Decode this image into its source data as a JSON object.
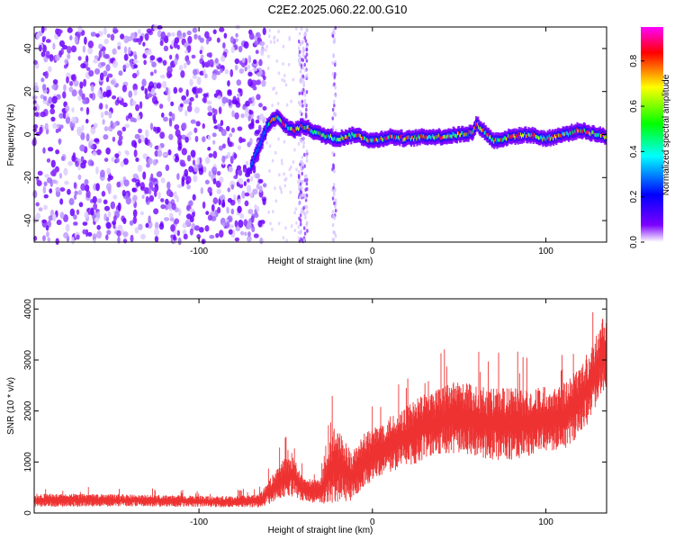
{
  "title": "C2E2.2025.060.22.00.G10",
  "chart_data": [
    {
      "type": "heatmap",
      "xlabel": "Height of straight line (km)",
      "ylabel": "Frequency (Hz)",
      "xlim": [
        -195,
        135
      ],
      "ylim": [
        -50,
        50
      ],
      "x_ticks": [
        -100,
        0,
        100
      ],
      "y_ticks": [
        -40,
        -20,
        0,
        20,
        40
      ],
      "colorbar": {
        "label": "Normalized spectral amplitude",
        "range": [
          0.0,
          0.95
        ],
        "ticks": [
          0.0,
          0.2,
          0.4,
          0.6,
          0.8
        ],
        "colors": [
          "#ffffff",
          "#7b00ff",
          "#0000ff",
          "#00ffff",
          "#00ff00",
          "#ffff00",
          "#ff0000",
          "#ff00ff"
        ]
      },
      "noise_region_x": [
        -195,
        -62
      ],
      "noise_columns_x": [
        -40,
        -22
      ],
      "signal_track": {
        "x": [
          -70,
          -65,
          -60,
          -55,
          -50,
          -45,
          -40,
          -30,
          -20,
          -10,
          0,
          10,
          20,
          30,
          40,
          50,
          58,
          60,
          70,
          80,
          90,
          100,
          110,
          120,
          130,
          135
        ],
        "freq": [
          -15,
          -5,
          5,
          8,
          4,
          2,
          4,
          0,
          -2,
          0,
          -3,
          -1,
          -2,
          -1,
          -1,
          0,
          1,
          5,
          -3,
          -1,
          0,
          -2,
          0,
          2,
          0,
          -1
        ]
      }
    },
    {
      "type": "line",
      "xlabel": "Height of straight line (km)",
      "ylabel": "SNR (10 * v/v)",
      "xlim": [
        -195,
        135
      ],
      "ylim": [
        0,
        4200
      ],
      "x_ticks": [
        -100,
        0,
        100
      ],
      "y_ticks": [
        0,
        1000,
        2000,
        3000,
        4000
      ],
      "color": "#ee3333",
      "trend": {
        "x": [
          -195,
          -150,
          -100,
          -80,
          -65,
          -52,
          -46,
          -40,
          -30,
          -22,
          -18,
          -12,
          -5,
          0,
          10,
          20,
          30,
          40,
          50,
          60,
          70,
          80,
          90,
          100,
          110,
          120,
          125,
          130,
          135
        ],
        "mean": [
          250,
          250,
          230,
          220,
          240,
          650,
          750,
          450,
          420,
          950,
          900,
          700,
          1000,
          1150,
          1350,
          1500,
          1700,
          1800,
          1900,
          1800,
          1750,
          1750,
          1750,
          1850,
          1900,
          2200,
          2500,
          2900,
          3200
        ],
        "spread": [
          120,
          110,
          100,
          100,
          120,
          350,
          400,
          200,
          220,
          700,
          600,
          450,
          500,
          450,
          500,
          550,
          600,
          600,
          650,
          650,
          650,
          650,
          600,
          600,
          600,
          650,
          650,
          650,
          700
        ]
      }
    }
  ]
}
